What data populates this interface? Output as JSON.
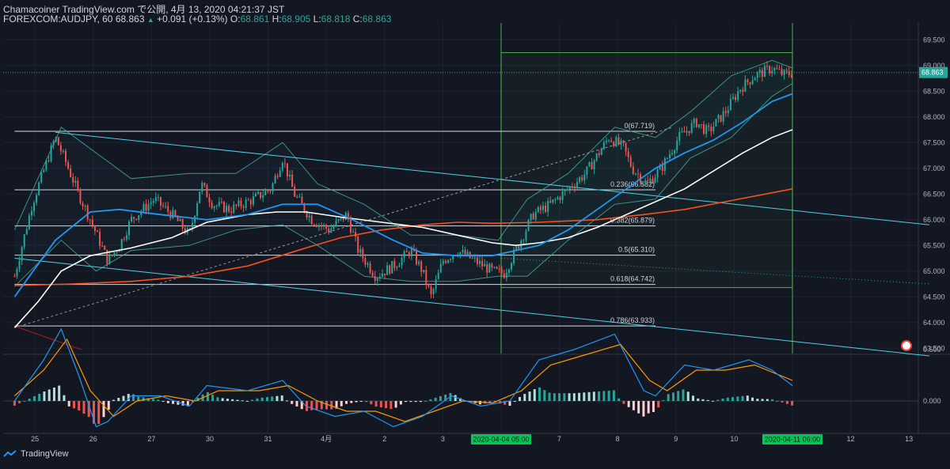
{
  "header": {
    "publish_line": "Chamacoiner TradingView.com で公開, 4月 13, 2020 04:21:37 JST",
    "symbol": "FOREXCOM:AUDJPY, 60",
    "last": "68.863",
    "change_arrow": "▲",
    "change": "+0.091 (+0.13%)",
    "o_label": "O:",
    "o": "68.861",
    "h_label": "H:",
    "h": "68.905",
    "l_label": "L:",
    "l": "68.818",
    "c_label": "C:",
    "c": "68.863"
  },
  "footer": {
    "brand": "TradingView"
  },
  "colors": {
    "background": "#131722",
    "up": "#26a69a",
    "down": "#ef5350",
    "ma_fast": "#2196f3",
    "ma_mid": "#ffffff",
    "ma_slow": "#f4511e",
    "bollinger": "#4db6ac",
    "channel": "#4dd0e1",
    "range_box": "#4caf50",
    "price_tag": "#26a69a"
  },
  "chart_data": {
    "type": "line",
    "title": "",
    "xlabel": "",
    "ylabel": "",
    "ylim": [
      63.3,
      69.7
    ],
    "y_ticks": [
      "69.500",
      "69.000",
      "68.500",
      "68.000",
      "67.500",
      "67.000",
      "66.500",
      "66.000",
      "65.500",
      "65.000",
      "64.500",
      "64.000",
      "63.500"
    ],
    "x_ticks": [
      {
        "label": "25",
        "x": 0.35
      },
      {
        "label": "26",
        "x": 1.35
      },
      {
        "label": "27",
        "x": 2.35
      },
      {
        "label": "30",
        "x": 3.35
      },
      {
        "label": "31",
        "x": 4.35
      },
      {
        "label": "4月",
        "x": 5.35
      },
      {
        "label": "2",
        "x": 6.35
      },
      {
        "label": "3",
        "x": 7.35
      },
      {
        "label": "7",
        "x": 9.35
      },
      {
        "label": "8",
        "x": 10.35
      },
      {
        "label": "9",
        "x": 11.35
      },
      {
        "label": "10",
        "x": 12.35
      },
      {
        "label": "12",
        "x": 14.35
      },
      {
        "label": "13",
        "x": 15.35
      }
    ],
    "x_highlight_labels": [
      {
        "label": "2020-04-04 05:00",
        "x": 8.35
      },
      {
        "label": "2020-04-11 06:00",
        "x": 13.35
      }
    ],
    "last_price": 68.863,
    "price_path": [
      {
        "x": 0,
        "y": 64.9
      },
      {
        "x": 0.3,
        "y": 66.3
      },
      {
        "x": 0.7,
        "y": 67.6
      },
      {
        "x": 0.85,
        "y": 67.2
      },
      {
        "x": 1.1,
        "y": 66.5
      },
      {
        "x": 1.3,
        "y": 66.0
      },
      {
        "x": 1.6,
        "y": 65.2
      },
      {
        "x": 1.8,
        "y": 65.5
      },
      {
        "x": 2.0,
        "y": 66.0
      },
      {
        "x": 2.4,
        "y": 66.4
      },
      {
        "x": 2.7,
        "y": 66.1
      },
      {
        "x": 3.0,
        "y": 65.7
      },
      {
        "x": 3.2,
        "y": 66.7
      },
      {
        "x": 3.4,
        "y": 66.3
      },
      {
        "x": 3.7,
        "y": 66.2
      },
      {
        "x": 4.1,
        "y": 66.4
      },
      {
        "x": 4.4,
        "y": 66.6
      },
      {
        "x": 4.6,
        "y": 67.2
      },
      {
        "x": 4.8,
        "y": 66.5
      },
      {
        "x": 5.1,
        "y": 66.0
      },
      {
        "x": 5.4,
        "y": 65.8
      },
      {
        "x": 5.7,
        "y": 66.1
      },
      {
        "x": 5.9,
        "y": 65.4
      },
      {
        "x": 6.2,
        "y": 64.9
      },
      {
        "x": 6.5,
        "y": 65.1
      },
      {
        "x": 6.8,
        "y": 65.4
      },
      {
        "x": 7.0,
        "y": 65.0
      },
      {
        "x": 7.15,
        "y": 64.5
      },
      {
        "x": 7.35,
        "y": 65.2
      },
      {
        "x": 7.6,
        "y": 65.4
      },
      {
        "x": 7.9,
        "y": 65.2
      },
      {
        "x": 8.2,
        "y": 65.0
      },
      {
        "x": 8.4,
        "y": 64.95
      },
      {
        "x": 8.6,
        "y": 65.4
      },
      {
        "x": 8.9,
        "y": 66.1
      },
      {
        "x": 9.2,
        "y": 66.3
      },
      {
        "x": 9.5,
        "y": 66.6
      },
      {
        "x": 9.8,
        "y": 66.9
      },
      {
        "x": 10.2,
        "y": 67.6
      },
      {
        "x": 10.45,
        "y": 67.4
      },
      {
        "x": 10.6,
        "y": 67.0
      },
      {
        "x": 10.85,
        "y": 66.7
      },
      {
        "x": 11.1,
        "y": 67.0
      },
      {
        "x": 11.4,
        "y": 67.6
      },
      {
        "x": 11.7,
        "y": 67.9
      },
      {
        "x": 11.9,
        "y": 67.7
      },
      {
        "x": 12.2,
        "y": 68.1
      },
      {
        "x": 12.45,
        "y": 68.55
      },
      {
        "x": 12.7,
        "y": 68.8
      },
      {
        "x": 13.0,
        "y": 68.95
      },
      {
        "x": 13.2,
        "y": 68.82
      },
      {
        "x": 13.35,
        "y": 68.86
      }
    ],
    "ma_fast": [
      {
        "x": 0,
        "y": 64.5
      },
      {
        "x": 0.7,
        "y": 65.6
      },
      {
        "x": 1.3,
        "y": 66.15
      },
      {
        "x": 1.8,
        "y": 66.2
      },
      {
        "x": 2.5,
        "y": 66.1
      },
      {
        "x": 3.3,
        "y": 66.0
      },
      {
        "x": 4.0,
        "y": 66.1
      },
      {
        "x": 4.6,
        "y": 66.3
      },
      {
        "x": 5.2,
        "y": 66.3
      },
      {
        "x": 5.8,
        "y": 66.0
      },
      {
        "x": 6.5,
        "y": 65.6
      },
      {
        "x": 7.0,
        "y": 65.35
      },
      {
        "x": 7.6,
        "y": 65.3
      },
      {
        "x": 8.2,
        "y": 65.3
      },
      {
        "x": 8.6,
        "y": 65.4
      },
      {
        "x": 9.0,
        "y": 65.5
      },
      {
        "x": 9.5,
        "y": 65.8
      },
      {
        "x": 10.0,
        "y": 66.2
      },
      {
        "x": 10.5,
        "y": 66.6
      },
      {
        "x": 11.0,
        "y": 67.0
      },
      {
        "x": 11.5,
        "y": 67.3
      },
      {
        "x": 12.0,
        "y": 67.55
      },
      {
        "x": 12.5,
        "y": 67.9
      },
      {
        "x": 13.0,
        "y": 68.3
      },
      {
        "x": 13.35,
        "y": 68.45
      }
    ],
    "ma_mid": [
      {
        "x": 0,
        "y": 63.9
      },
      {
        "x": 0.4,
        "y": 64.4
      },
      {
        "x": 0.8,
        "y": 65.0
      },
      {
        "x": 1.3,
        "y": 65.3
      },
      {
        "x": 2.0,
        "y": 65.45
      },
      {
        "x": 2.7,
        "y": 65.65
      },
      {
        "x": 3.3,
        "y": 65.95
      },
      {
        "x": 4.0,
        "y": 66.1
      },
      {
        "x": 4.5,
        "y": 66.15
      },
      {
        "x": 5.0,
        "y": 66.15
      },
      {
        "x": 5.6,
        "y": 66.05
      },
      {
        "x": 6.3,
        "y": 65.95
      },
      {
        "x": 7.0,
        "y": 65.85
      },
      {
        "x": 7.6,
        "y": 65.7
      },
      {
        "x": 8.2,
        "y": 65.55
      },
      {
        "x": 8.6,
        "y": 65.5
      },
      {
        "x": 9.0,
        "y": 65.55
      },
      {
        "x": 9.5,
        "y": 65.65
      },
      {
        "x": 10.0,
        "y": 65.85
      },
      {
        "x": 10.5,
        "y": 66.1
      },
      {
        "x": 11.0,
        "y": 66.35
      },
      {
        "x": 11.5,
        "y": 66.6
      },
      {
        "x": 12.0,
        "y": 66.95
      },
      {
        "x": 12.5,
        "y": 67.3
      },
      {
        "x": 13.0,
        "y": 67.6
      },
      {
        "x": 13.35,
        "y": 67.75
      }
    ],
    "ma_slow": [
      {
        "x": 0,
        "y": 64.72
      },
      {
        "x": 1.0,
        "y": 64.75
      },
      {
        "x": 2.0,
        "y": 64.8
      },
      {
        "x": 3.0,
        "y": 64.9
      },
      {
        "x": 4.0,
        "y": 65.1
      },
      {
        "x": 5.0,
        "y": 65.45
      },
      {
        "x": 5.6,
        "y": 65.65
      },
      {
        "x": 6.3,
        "y": 65.8
      },
      {
        "x": 7.0,
        "y": 65.9
      },
      {
        "x": 7.6,
        "y": 65.95
      },
      {
        "x": 8.2,
        "y": 65.93
      },
      {
        "x": 9.0,
        "y": 65.95
      },
      {
        "x": 10.0,
        "y": 66.0
      },
      {
        "x": 10.8,
        "y": 66.1
      },
      {
        "x": 11.5,
        "y": 66.2
      },
      {
        "x": 12.2,
        "y": 66.35
      },
      {
        "x": 13.35,
        "y": 66.6
      }
    ],
    "bollinger_upper": [
      {
        "x": 0,
        "y": 65.8
      },
      {
        "x": 0.8,
        "y": 67.8
      },
      {
        "x": 1.4,
        "y": 67.3
      },
      {
        "x": 2.0,
        "y": 66.8
      },
      {
        "x": 3.0,
        "y": 66.9
      },
      {
        "x": 3.8,
        "y": 66.9
      },
      {
        "x": 4.6,
        "y": 67.5
      },
      {
        "x": 5.2,
        "y": 66.7
      },
      {
        "x": 6.0,
        "y": 66.3
      },
      {
        "x": 6.8,
        "y": 65.7
      },
      {
        "x": 7.6,
        "y": 65.7
      },
      {
        "x": 8.3,
        "y": 65.6
      },
      {
        "x": 8.8,
        "y": 66.4
      },
      {
        "x": 9.5,
        "y": 66.9
      },
      {
        "x": 10.3,
        "y": 67.8
      },
      {
        "x": 11.0,
        "y": 67.6
      },
      {
        "x": 11.6,
        "y": 68.1
      },
      {
        "x": 12.3,
        "y": 68.8
      },
      {
        "x": 13.0,
        "y": 69.1
      },
      {
        "x": 13.35,
        "y": 68.95
      }
    ],
    "bollinger_lower": [
      {
        "x": 0,
        "y": 64.7
      },
      {
        "x": 0.8,
        "y": 65.6
      },
      {
        "x": 1.4,
        "y": 65.0
      },
      {
        "x": 2.0,
        "y": 65.4
      },
      {
        "x": 3.0,
        "y": 65.5
      },
      {
        "x": 3.8,
        "y": 65.8
      },
      {
        "x": 4.6,
        "y": 65.9
      },
      {
        "x": 5.2,
        "y": 65.5
      },
      {
        "x": 6.0,
        "y": 64.9
      },
      {
        "x": 6.8,
        "y": 64.8
      },
      {
        "x": 7.6,
        "y": 64.8
      },
      {
        "x": 8.3,
        "y": 64.9
      },
      {
        "x": 8.8,
        "y": 64.9
      },
      {
        "x": 9.5,
        "y": 65.6
      },
      {
        "x": 10.3,
        "y": 66.3
      },
      {
        "x": 11.0,
        "y": 66.4
      },
      {
        "x": 11.6,
        "y": 67.2
      },
      {
        "x": 12.3,
        "y": 67.6
      },
      {
        "x": 13.0,
        "y": 68.4
      },
      {
        "x": 13.35,
        "y": 68.65
      }
    ],
    "channel_upper": [
      {
        "x": 0.7,
        "y": 67.7
      },
      {
        "x": 15.7,
        "y": 65.9
      }
    ],
    "channel_lower": [
      {
        "x": 0,
        "y": 65.25
      },
      {
        "x": 15.7,
        "y": 63.35
      }
    ],
    "channel_mid_dotted": [
      {
        "x": 8.35,
        "y": 65.25
      },
      {
        "x": 15.7,
        "y": 64.75
      }
    ],
    "diagonal_dashed": [
      {
        "x": 0,
        "y": 63.9
      },
      {
        "x": 11.3,
        "y": 67.8
      }
    ],
    "red_line": [
      {
        "x": 0,
        "y": 63.93
      },
      {
        "x": 1.15,
        "y": 63.47
      }
    ],
    "range_box": {
      "x0": 8.35,
      "x1": 13.35,
      "y0": 64.68,
      "y1": 69.25
    },
    "vertical_markers": [
      8.35,
      13.35
    ],
    "fib_span": {
      "x0": 0,
      "x1": 11.0
    },
    "fib_levels": [
      {
        "label": "0(67.719)",
        "value": 67.719
      },
      {
        "label": "0.236(66.582)",
        "value": 66.582
      },
      {
        "label": "0.382(65.879)",
        "value": 65.879
      },
      {
        "label": "0.5(65.310)",
        "value": 65.31
      },
      {
        "label": "0.618(64.742)",
        "value": 64.742
      },
      {
        "label": "0.786(63.933)",
        "value": 63.933
      }
    ],
    "macd": {
      "ylim": [
        -0.5,
        0.8
      ],
      "y_ticks": [
        "0.500",
        "0.000"
      ],
      "macd_line": [
        {
          "x": 0,
          "y": 0.0
        },
        {
          "x": 0.5,
          "y": 0.4
        },
        {
          "x": 0.8,
          "y": 0.7
        },
        {
          "x": 1.1,
          "y": 0.25
        },
        {
          "x": 1.4,
          "y": -0.25
        },
        {
          "x": 1.6,
          "y": -0.2
        },
        {
          "x": 2.0,
          "y": 0.05
        },
        {
          "x": 2.5,
          "y": 0.05
        },
        {
          "x": 3.0,
          "y": -0.05
        },
        {
          "x": 3.3,
          "y": 0.15
        },
        {
          "x": 4.0,
          "y": 0.1
        },
        {
          "x": 4.6,
          "y": 0.2
        },
        {
          "x": 5.0,
          "y": -0.05
        },
        {
          "x": 5.5,
          "y": -0.15
        },
        {
          "x": 6.0,
          "y": -0.1
        },
        {
          "x": 6.5,
          "y": -0.25
        },
        {
          "x": 7.0,
          "y": -0.15
        },
        {
          "x": 7.5,
          "y": 0.05
        },
        {
          "x": 8.0,
          "y": -0.05
        },
        {
          "x": 8.5,
          "y": 0.0
        },
        {
          "x": 9.0,
          "y": 0.4
        },
        {
          "x": 9.6,
          "y": 0.5
        },
        {
          "x": 10.3,
          "y": 0.65
        },
        {
          "x": 10.8,
          "y": 0.1
        },
        {
          "x": 11.0,
          "y": 0.05
        },
        {
          "x": 11.5,
          "y": 0.35
        },
        {
          "x": 12.0,
          "y": 0.3
        },
        {
          "x": 12.6,
          "y": 0.4
        },
        {
          "x": 13.0,
          "y": 0.3
        },
        {
          "x": 13.35,
          "y": 0.15
        }
      ],
      "signal_line": [
        {
          "x": 0,
          "y": 0.05
        },
        {
          "x": 0.5,
          "y": 0.3
        },
        {
          "x": 0.9,
          "y": 0.6
        },
        {
          "x": 1.3,
          "y": 0.1
        },
        {
          "x": 1.7,
          "y": -0.15
        },
        {
          "x": 2.1,
          "y": 0.0
        },
        {
          "x": 2.6,
          "y": 0.05
        },
        {
          "x": 3.1,
          "y": 0.0
        },
        {
          "x": 3.5,
          "y": 0.1
        },
        {
          "x": 4.2,
          "y": 0.1
        },
        {
          "x": 4.7,
          "y": 0.15
        },
        {
          "x": 5.2,
          "y": 0.0
        },
        {
          "x": 5.7,
          "y": -0.1
        },
        {
          "x": 6.2,
          "y": -0.1
        },
        {
          "x": 6.7,
          "y": -0.2
        },
        {
          "x": 7.2,
          "y": -0.1
        },
        {
          "x": 7.7,
          "y": 0.0
        },
        {
          "x": 8.2,
          "y": -0.02
        },
        {
          "x": 8.7,
          "y": 0.1
        },
        {
          "x": 9.2,
          "y": 0.35
        },
        {
          "x": 9.8,
          "y": 0.45
        },
        {
          "x": 10.4,
          "y": 0.55
        },
        {
          "x": 10.9,
          "y": 0.2
        },
        {
          "x": 11.2,
          "y": 0.1
        },
        {
          "x": 11.7,
          "y": 0.3
        },
        {
          "x": 12.2,
          "y": 0.3
        },
        {
          "x": 12.7,
          "y": 0.35
        },
        {
          "x": 13.35,
          "y": 0.2
        }
      ]
    }
  }
}
